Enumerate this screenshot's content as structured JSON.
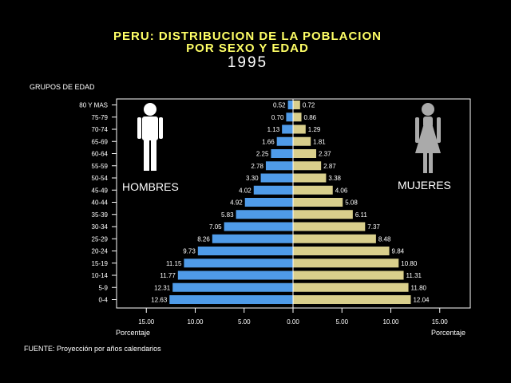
{
  "title_line1": "PERU: DISTRIBUCION DE LA POBLACION",
  "title_line2": "POR SEXO Y EDAD",
  "title_year": "1995",
  "ylabel": "GRUPOS DE EDAD",
  "xlabel_left": "Porcentaje",
  "xlabel_right": "Porcentaje",
  "source_note": "FUENTE: Proyección por años calendarios",
  "colors": {
    "men": "#4f9be8",
    "women": "#d9cf8c",
    "title": "#ffff66"
  },
  "chart_data": {
    "type": "bar",
    "orientation": "horizontal",
    "subtype": "population-pyramid",
    "categories": [
      "80 Y MAS",
      "75-79",
      "70-74",
      "65-69",
      "60-64",
      "55-59",
      "50-54",
      "45-49",
      "40-44",
      "35-39",
      "30-34",
      "25-29",
      "20-24",
      "15-19",
      "10-14",
      "5-9",
      "0-4"
    ],
    "series": [
      {
        "name": "HOMBRES",
        "side": "left",
        "values": [
          0.52,
          0.7,
          1.13,
          1.66,
          2.25,
          2.78,
          3.3,
          4.02,
          4.92,
          5.83,
          7.05,
          8.26,
          9.73,
          11.15,
          11.77,
          12.31,
          12.63
        ],
        "labels": [
          "0.52",
          "0.70",
          "1.13",
          "1.66",
          "2.25",
          "2.78",
          "3.30",
          "4.02",
          "4.92",
          "5.83",
          "7.05",
          "8.26",
          "9.73",
          "11.15",
          "11.77",
          "12.31",
          "12.63"
        ]
      },
      {
        "name": "MUJERES",
        "side": "right",
        "values": [
          0.72,
          0.86,
          1.29,
          1.81,
          2.37,
          2.87,
          3.38,
          4.06,
          5.08,
          6.11,
          7.37,
          8.48,
          9.84,
          10.8,
          11.31,
          11.8,
          12.04
        ],
        "labels": [
          "0.72",
          "0.86",
          "1.29",
          "1.81",
          "2.37",
          "2.87",
          "3.38",
          "4.06",
          "5.08",
          "6.11",
          "7.37",
          "8.48",
          "9.84",
          "10.80",
          "11.31",
          "11.80",
          "12.04"
        ]
      }
    ],
    "xlim": [
      -15,
      15
    ],
    "xticks": [
      -15,
      -10,
      -5,
      0,
      5,
      10,
      15
    ],
    "xtick_labels": [
      "15.00",
      "10.00",
      "5.00",
      "0.00",
      "5.00",
      "10.00",
      "15.00"
    ],
    "grid": false,
    "legend": "inline figure labels"
  },
  "icons": {
    "men": "man-figure-icon",
    "women": "woman-figure-icon"
  }
}
